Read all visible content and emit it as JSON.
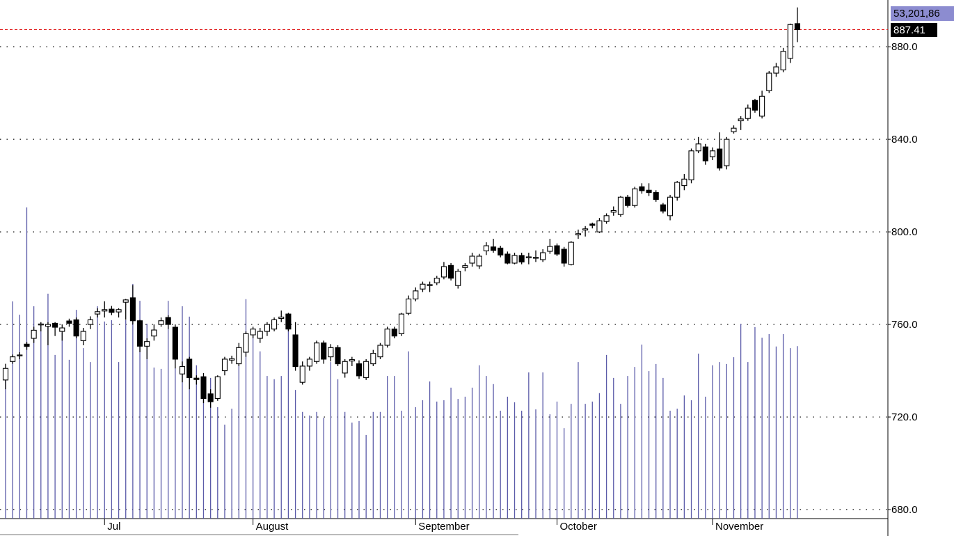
{
  "chart_data": {
    "type": "candlestick",
    "categories": [
      null,
      null,
      null,
      null,
      null,
      null,
      null,
      null,
      null,
      null,
      null,
      null,
      null,
      null,
      "Jul",
      null,
      null,
      null,
      null,
      null,
      null,
      null,
      null,
      null,
      null,
      null,
      null,
      null,
      null,
      null,
      null,
      null,
      null,
      null,
      null,
      "August",
      null,
      null,
      null,
      null,
      null,
      null,
      null,
      null,
      null,
      null,
      null,
      null,
      null,
      null,
      null,
      null,
      null,
      null,
      null,
      null,
      null,
      null,
      "September",
      null,
      null,
      null,
      null,
      null,
      null,
      null,
      null,
      null,
      null,
      null,
      null,
      null,
      null,
      null,
      null,
      null,
      null,
      null,
      "October",
      null,
      null,
      null,
      null,
      null,
      null,
      null,
      null,
      null,
      null,
      null,
      null,
      null,
      null,
      null,
      null,
      null,
      null,
      null,
      null,
      null,
      "November",
      null,
      null,
      null,
      null,
      null,
      null,
      null,
      null,
      null,
      null,
      null,
      null
    ],
    "open": [
      736,
      744,
      746.5,
      751.5,
      754,
      759.8,
      759.2,
      760.5,
      757,
      761.5,
      762,
      753,
      760,
      764.5,
      765.8,
      766.6,
      765.4,
      769.6,
      771.5,
      761.6,
      750.6,
      755,
      760,
      763,
      758.8,
      738.6,
      745,
      736.8,
      737.4,
      730,
      728,
      740,
      744.6,
      743,
      748,
      755.5,
      754,
      757,
      758,
      762.6,
      764.5,
      755.5,
      735,
      742,
      744,
      752,
      746,
      750,
      739,
      744.2,
      743,
      737,
      743,
      746,
      751,
      758,
      756,
      764.8,
      771,
      775.3,
      776.8,
      778,
      780.5,
      785.5,
      776.8,
      784.6,
      786.5,
      785.3,
      791.8,
      793.5,
      793,
      790.4,
      786.5,
      789.8,
      788.8,
      788.6,
      788,
      791.6,
      794,
      792.5,
      785.9,
      798.7,
      800.8,
      803.4,
      800,
      804.5,
      808.5,
      807.5,
      815,
      811.4,
      819.5,
      818,
      817,
      811.7,
      807,
      815,
      820,
      822.5,
      835,
      836.7,
      832.5,
      835.8,
      828.6,
      843.3,
      848,
      849,
      856.8,
      850,
      861,
      868.6,
      870,
      875,
      890
    ],
    "high": [
      743,
      747,
      748,
      752.5,
      759,
      761,
      761,
      761,
      760,
      762.5,
      763,
      758.5,
      763.5,
      767,
      770,
      768,
      767,
      771,
      777,
      762,
      754,
      760,
      763,
      764,
      760,
      744,
      746,
      738,
      739,
      732,
      738,
      746,
      746.5,
      752,
      757,
      759,
      758.5,
      761,
      763,
      766,
      765,
      761,
      744,
      746,
      753,
      753,
      751.5,
      751,
      745,
      746,
      744.5,
      745,
      749,
      752,
      759,
      759,
      765,
      772.5,
      776,
      778.5,
      778.5,
      781,
      787,
      786.5,
      784,
      786.5,
      791,
      790.5,
      795.5,
      797,
      794,
      791.5,
      791,
      791,
      791,
      792,
      792.5,
      797,
      795,
      793.5,
      796,
      801,
      802.5,
      804,
      806,
      808,
      811,
      815.5,
      816,
      819.5,
      821,
      821,
      818,
      812.5,
      816,
      822,
      825,
      836,
      841,
      838,
      836.5,
      843,
      841,
      846,
      850,
      855,
      857.5,
      861,
      869.5,
      873,
      879.5,
      890,
      897
    ],
    "low": [
      732,
      743,
      745,
      749,
      752,
      757,
      751,
      755,
      753,
      759,
      754,
      751,
      758,
      763,
      763,
      764,
      763,
      762,
      760,
      748,
      745,
      753,
      759,
      758,
      741,
      735,
      732,
      734,
      726,
      724,
      727,
      738,
      743,
      742,
      746,
      754,
      752,
      755,
      757,
      761,
      757,
      740,
      734,
      740,
      743,
      743,
      744,
      742,
      737,
      742,
      736.5,
      736,
      742,
      745,
      750,
      754,
      755,
      764,
      770,
      774,
      774,
      777,
      779.5,
      779,
      775.5,
      783,
      785,
      784,
      790,
      791,
      789,
      786,
      786,
      786,
      786,
      787,
      787,
      790.5,
      789.5,
      785,
      785.5,
      797,
      798,
      801.5,
      799.5,
      803.5,
      807,
      806.5,
      810.5,
      810.5,
      816.5,
      815.5,
      813,
      808,
      805,
      813.5,
      818,
      821,
      834,
      829,
      831,
      826.5,
      827,
      842.5,
      844,
      848,
      851.5,
      849,
      860,
      867,
      869,
      873,
      882
    ],
    "close": [
      741,
      746,
      746.8,
      750.5,
      757.5,
      760.2,
      760,
      758.8,
      758.5,
      760.5,
      755,
      757,
      762,
      765.5,
      766.4,
      765.2,
      766.4,
      770.6,
      761.6,
      750.6,
      752.6,
      757.6,
      761.6,
      760,
      745,
      741.8,
      737,
      736.2,
      728,
      726.6,
      737.4,
      745,
      745.2,
      750,
      756,
      758,
      757,
      760,
      762,
      763.2,
      758,
      741.8,
      742,
      745,
      752,
      745,
      750,
      743,
      744,
      744.8,
      737.8,
      744,
      747.5,
      751,
      758,
      755,
      764.5,
      771,
      774.5,
      777.4,
      777.2,
      780,
      785,
      780,
      783,
      785.4,
      789.5,
      789.5,
      794,
      792,
      790,
      786.5,
      789.8,
      787,
      789.2,
      789,
      791,
      793.7,
      790.4,
      786.5,
      795.5,
      799.2,
      801.3,
      802.8,
      804.8,
      807,
      809.2,
      815,
      811.4,
      818.6,
      817.8,
      817,
      814,
      809,
      815,
      821.4,
      822.8,
      835,
      838,
      830.7,
      835,
      827.6,
      840,
      844.8,
      848.8,
      853.5,
      852.6,
      858.6,
      868.6,
      871.3,
      878,
      889.6,
      887.41
    ],
    "volume": [
      43.0,
      67.0,
      62.9,
      96.0,
      65.5,
      60.4,
      69.4,
      50.5,
      57.4,
      49.0,
      64.4,
      52.6,
      48.3,
      65.5,
      60.8,
      61.2,
      48.3,
      61.2,
      72.4,
      67.2,
      60.1,
      46.6,
      46.2,
      67.2,
      54.1,
      65.5,
      62.3,
      47.3,
      44.0,
      43.4,
      34.4,
      29.0,
      33.9,
      48.3,
      67.7,
      56.5,
      51.6,
      44.0,
      43.0,
      44.0,
      61.2,
      39.7,
      32.9,
      31.8,
      32.9,
      31.1,
      48.3,
      43.0,
      32.9,
      29.6,
      30.1,
      25.8,
      32.9,
      32.9,
      44.0,
      44.0,
      33.3,
      51.6,
      34.4,
      36.5,
      42.3,
      36.1,
      36.5,
      40.4,
      36.9,
      37.6,
      40.4,
      47.3,
      44.0,
      41.5,
      33.3,
      37.6,
      35.9,
      33.3,
      45.1,
      33.7,
      45.1,
      32.2,
      36.1,
      27.9,
      35.4,
      48.3,
      35.4,
      36.1,
      38.7,
      50.5,
      43.4,
      35.4,
      44.0,
      46.8,
      53.7,
      45.5,
      47.7,
      43.4,
      33.3,
      33.9,
      38.0,
      36.5,
      50.9,
      37.6,
      47.3,
      48.3,
      47.7,
      49.8,
      60.1,
      48.3,
      59.1,
      55.8,
      56.9,
      53.1,
      56.9,
      52.6,
      53.20186
    ],
    "volume_label": "53,201,86",
    "volume_color": "#5a5aa8",
    "up_color": "#ffffff",
    "down_color": "#000000",
    "last_line_color": "#e02020",
    "ylim": [
      676.1,
      900.2
    ],
    "yticks": [
      {
        "value": 680,
        "label": "680.0"
      },
      {
        "value": 720,
        "label": "720.0"
      },
      {
        "value": 760,
        "label": "760.0"
      },
      {
        "value": 800,
        "label": "800.0"
      },
      {
        "value": 840,
        "label": "840.0"
      },
      {
        "value": 880,
        "label": "880.0"
      }
    ],
    "y2lim": [
      0,
      160
    ],
    "grid": true
  }
}
